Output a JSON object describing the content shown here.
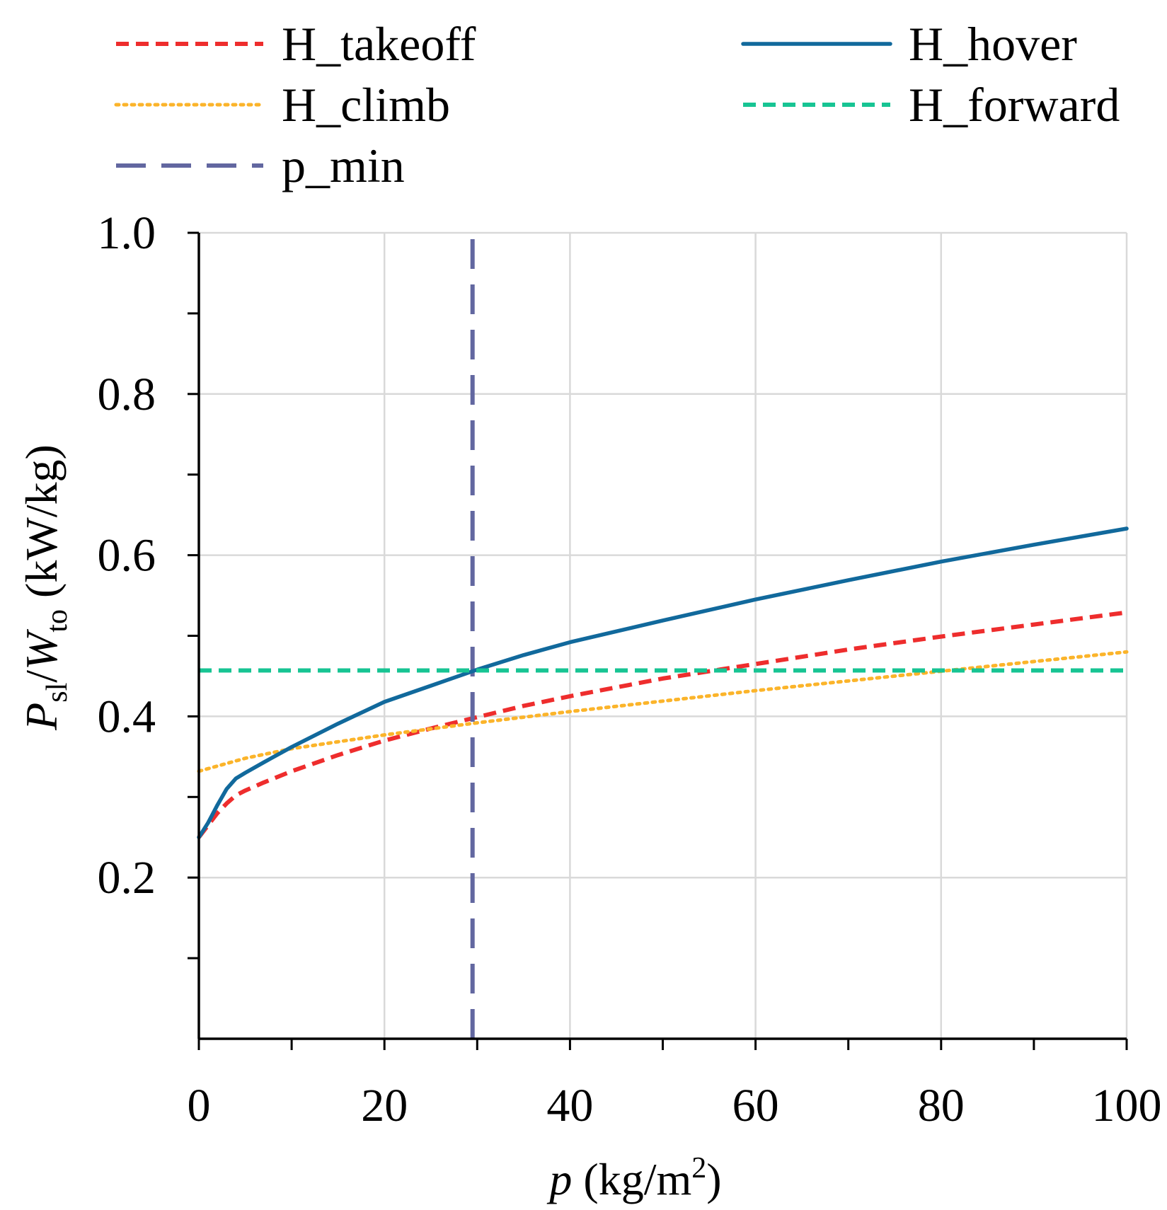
{
  "chart_data": {
    "type": "line",
    "title": "",
    "xlabel": {
      "symbol": "p",
      "unit_prefix": "(kg/m",
      "unit_sup": "2",
      "unit_suffix": ")"
    },
    "ylabel": {
      "sym1": "P",
      "sub1": "sl",
      "slash": "/",
      "sym2": "W",
      "sub2": "to",
      "unit": "(kW/kg)"
    },
    "xlim": [
      0,
      100
    ],
    "ylim": [
      0,
      1.0
    ],
    "xticks": [
      0,
      20,
      40,
      60,
      80,
      100
    ],
    "xtick_labels": [
      "0",
      "20",
      "40",
      "60",
      "80",
      "100"
    ],
    "xminor": [
      10,
      30,
      50,
      70,
      90
    ],
    "yticks": [
      0.2,
      0.4,
      0.6,
      0.8,
      1.0
    ],
    "ytick_labels": [
      "0.2",
      "0.4",
      "0.6",
      "0.8",
      "1.0"
    ],
    "yminor": [
      0.1,
      0.3,
      0.5,
      0.7,
      0.9
    ],
    "grid": true,
    "legend_position": "top",
    "series": [
      {
        "name": "H_takeoff",
        "color": "#ee2d2d",
        "style": "dashed",
        "x": [
          0,
          1,
          2,
          3,
          4,
          5,
          7,
          10,
          15,
          20,
          25,
          30,
          35,
          40,
          50,
          60,
          70,
          80,
          90,
          100
        ],
        "y": [
          0.25,
          0.265,
          0.28,
          0.292,
          0.302,
          0.308,
          0.318,
          0.332,
          0.352,
          0.37,
          0.385,
          0.399,
          0.413,
          0.425,
          0.447,
          0.465,
          0.483,
          0.499,
          0.514,
          0.529
        ]
      },
      {
        "name": "H_climb",
        "color": "#fbb42a",
        "style": "dotted",
        "x": [
          0,
          5,
          10,
          20,
          30,
          40,
          50,
          60,
          70,
          80,
          90,
          100
        ],
        "y": [
          0.332,
          0.348,
          0.36,
          0.377,
          0.392,
          0.406,
          0.419,
          0.432,
          0.444,
          0.456,
          0.468,
          0.48
        ]
      },
      {
        "name": "p_min",
        "color": "#6267a0",
        "style": "longdash",
        "x": [
          29.5,
          29.5
        ],
        "y": [
          0,
          1.0
        ]
      },
      {
        "name": "H_hover",
        "color": "#11699c",
        "style": "solid",
        "x": [
          0,
          1,
          2,
          3,
          4,
          5,
          7,
          10,
          15,
          20,
          25,
          30,
          35,
          40,
          50,
          60,
          70,
          80,
          90,
          100
        ],
        "y": [
          0.25,
          0.268,
          0.29,
          0.31,
          0.323,
          0.33,
          0.343,
          0.362,
          0.391,
          0.418,
          0.438,
          0.458,
          0.476,
          0.492,
          0.519,
          0.545,
          0.569,
          0.592,
          0.613,
          0.633
        ]
      },
      {
        "name": "H_forward",
        "color": "#17c493",
        "style": "dashed",
        "x": [
          0,
          100
        ],
        "y": [
          0.457,
          0.457
        ]
      }
    ]
  }
}
